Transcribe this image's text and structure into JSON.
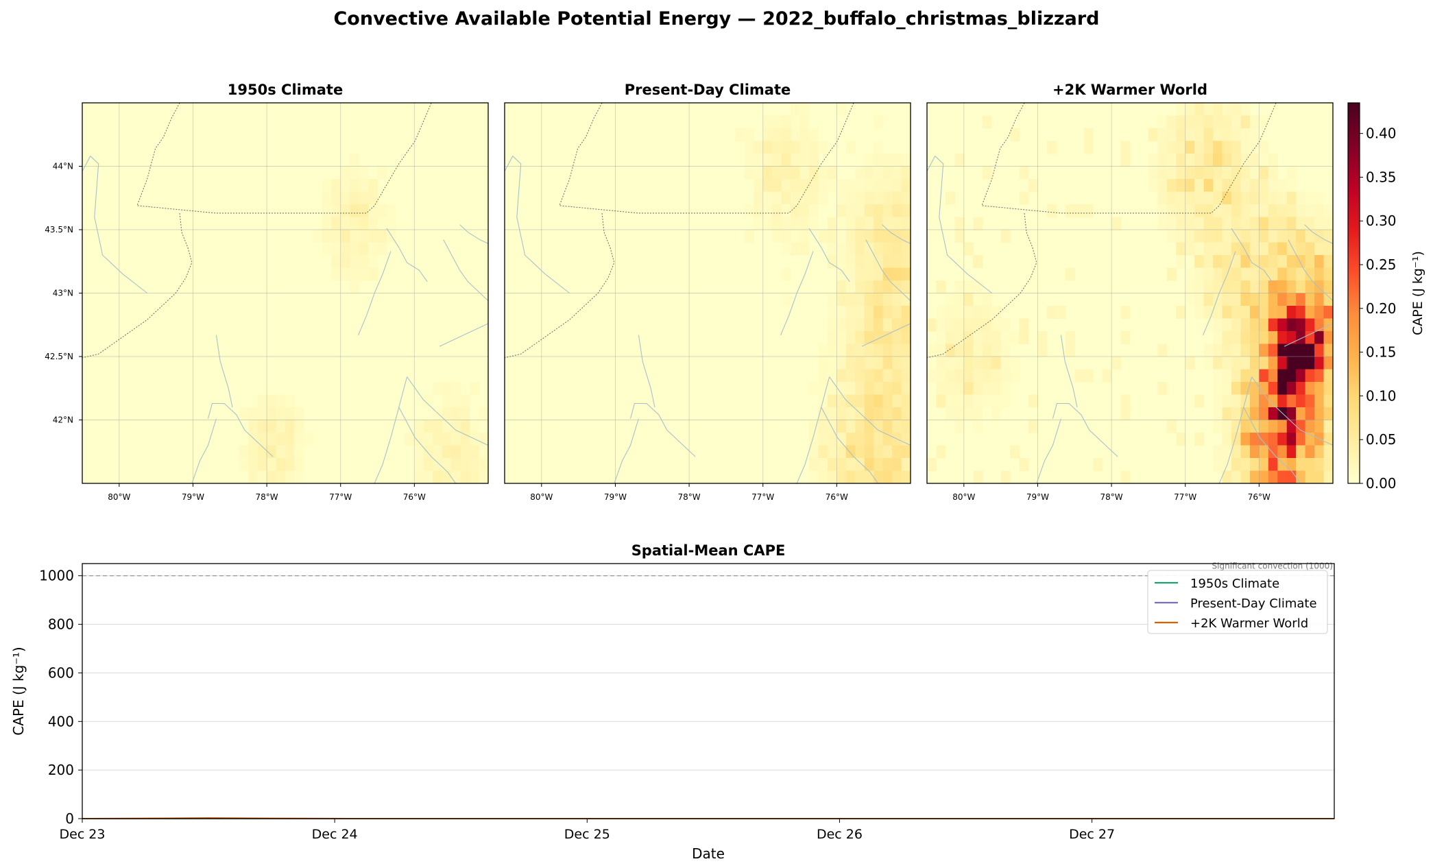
{
  "figure": {
    "suptitle": "Convective Available Potential Energy — 2022_buffalo_christmas_blizzard"
  },
  "chart_data": [
    {
      "type": "heatmap",
      "panel": "map_1950s",
      "title": "1950s Climate",
      "x_ticks": [
        "80°W",
        "79°W",
        "78°W",
        "77°W",
        "76°W"
      ],
      "x_tick_values": [
        -80,
        -79,
        -78,
        -77,
        -76
      ],
      "y_ticks": [
        "44°N",
        "43.5°N",
        "43°N",
        "42.5°N",
        "42°N"
      ],
      "y_tick_values": [
        44,
        43.5,
        43,
        42.5,
        42
      ],
      "extent": [
        -80.5,
        -75.0,
        41.5,
        44.5
      ],
      "grid": true,
      "intensity_scale": 0.12,
      "hotspots": [
        {
          "lon": -77.9,
          "lat": 41.8,
          "sigma": 0.25,
          "value": 0.035
        },
        {
          "lon": -76.8,
          "lat": 43.55,
          "sigma": 0.3,
          "value": 0.03
        },
        {
          "lon": -75.5,
          "lat": 41.7,
          "sigma": 0.35,
          "value": 0.03
        }
      ]
    },
    {
      "type": "heatmap",
      "panel": "map_present",
      "title": "Present-Day Climate",
      "x_ticks": [
        "80°W",
        "79°W",
        "78°W",
        "77°W",
        "76°W"
      ],
      "x_tick_values": [
        -80,
        -79,
        -78,
        -77,
        -76
      ],
      "y_ticks": [],
      "extent": [
        -80.5,
        -75.0,
        41.5,
        44.5
      ],
      "grid": true,
      "intensity_scale": 0.35,
      "hotspots": [
        {
          "lon": -75.5,
          "lat": 41.7,
          "sigma": 0.45,
          "value": 0.07
        },
        {
          "lon": -75.2,
          "lat": 42.8,
          "sigma": 0.45,
          "value": 0.05
        },
        {
          "lon": -76.7,
          "lat": 43.95,
          "sigma": 0.35,
          "value": 0.03
        },
        {
          "lon": -75.3,
          "lat": 43.5,
          "sigma": 0.35,
          "value": 0.035
        }
      ]
    },
    {
      "type": "heatmap",
      "panel": "map_plus2k",
      "title": "+2K Warmer World",
      "x_ticks": [
        "80°W",
        "79°W",
        "78°W",
        "77°W",
        "76°W"
      ],
      "x_tick_values": [
        -80,
        -79,
        -78,
        -77,
        -76
      ],
      "y_ticks": [],
      "extent": [
        -80.5,
        -75.0,
        41.5,
        44.5
      ],
      "grid": true,
      "intensity_scale": 1.0,
      "hotspots": [
        {
          "lon": -75.5,
          "lat": 42.55,
          "sigma": 0.22,
          "value": 0.36
        },
        {
          "lon": -75.6,
          "lat": 42.05,
          "sigma": 0.35,
          "value": 0.2
        },
        {
          "lon": -75.8,
          "lat": 41.75,
          "sigma": 0.3,
          "value": 0.14
        },
        {
          "lon": -75.2,
          "lat": 42.85,
          "sigma": 0.35,
          "value": 0.12
        },
        {
          "lon": -76.0,
          "lat": 43.1,
          "sigma": 0.45,
          "value": 0.06
        },
        {
          "lon": -79.9,
          "lat": 42.5,
          "sigma": 0.35,
          "value": 0.03
        },
        {
          "lon": -76.7,
          "lat": 44.0,
          "sigma": 0.4,
          "value": 0.05
        }
      ]
    },
    {
      "type": "colorbar",
      "label": "CAPE (J kg⁻¹)",
      "range": [
        0.0,
        0.435
      ],
      "ticks": [
        "0.00",
        "0.05",
        "0.10",
        "0.15",
        "0.20",
        "0.25",
        "0.30",
        "0.35",
        "0.40"
      ],
      "tick_values": [
        0,
        0.05,
        0.1,
        0.15,
        0.2,
        0.25,
        0.3,
        0.35,
        0.4
      ],
      "colormap": [
        "#ffffcc",
        "#ffeda0",
        "#fed976",
        "#feb24c",
        "#fd8d3c",
        "#fc4e2a",
        "#e31a1c",
        "#bd0026",
        "#800026",
        "#4a0020"
      ]
    },
    {
      "type": "line",
      "title": "Spatial-Mean CAPE",
      "xlabel": "Date",
      "ylabel": "CAPE (J kg⁻¹)",
      "x_ticks": [
        "Dec 23",
        "Dec 24",
        "Dec 25",
        "Dec 26",
        "Dec 27"
      ],
      "x_tick_values": [
        0,
        1,
        2,
        3,
        4
      ],
      "xlim": [
        0,
        4.96
      ],
      "y_ticks": [
        "0",
        "200",
        "400",
        "600",
        "800",
        "1000"
      ],
      "y_tick_values": [
        0,
        200,
        400,
        600,
        800,
        1000
      ],
      "ylim": [
        0,
        1050
      ],
      "grid": "horizontal",
      "legend_position": "top-right",
      "reference_line": {
        "y": 1000,
        "label": "Significant convection (1000)"
      },
      "x": [
        0,
        0.25,
        0.5,
        0.75,
        1,
        1.25,
        1.5,
        1.75,
        2,
        2.25,
        2.5,
        2.75,
        3,
        3.25,
        3.5,
        3.75,
        4,
        4.25,
        4.5,
        4.75,
        4.96
      ],
      "series": [
        {
          "name": "1950s Climate",
          "color": "#1b9e77",
          "values": [
            0,
            0,
            0.2,
            0,
            0,
            0,
            0,
            0,
            0,
            0,
            0,
            0,
            0,
            0,
            0,
            0,
            0,
            0,
            0,
            0,
            0
          ]
        },
        {
          "name": "Present-Day Climate",
          "color": "#7570b3",
          "values": [
            0,
            0.5,
            1.5,
            0.5,
            0,
            0,
            0,
            0,
            0,
            0,
            0,
            0,
            0,
            0,
            0,
            0,
            0,
            0,
            0,
            0,
            0
          ]
        },
        {
          "name": "+2K Warmer World",
          "color": "#d95f02",
          "values": [
            0,
            1,
            3,
            1,
            0.2,
            0,
            0,
            0,
            0,
            0,
            0,
            0,
            0,
            0,
            0,
            0,
            0,
            0,
            0,
            0,
            0
          ]
        }
      ]
    }
  ]
}
